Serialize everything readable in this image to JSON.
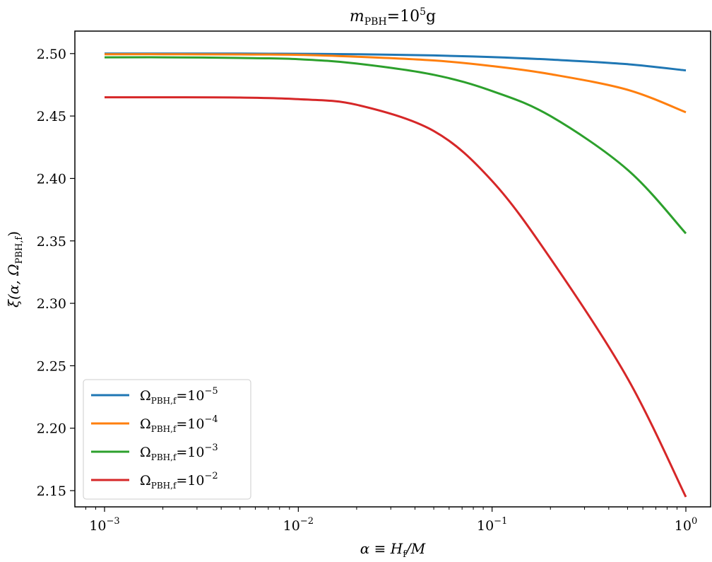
{
  "chart_data": {
    "type": "line",
    "title": "m_PBH=10^5g",
    "title_parts": {
      "base": "m",
      "sub": "PBH",
      "mid": "=10",
      "sup": "5",
      "tail": "g"
    },
    "xlabel": "α ≡ H_f/M",
    "xlabel_parts": {
      "a": "α ≡ H",
      "sub": "f",
      "b": "/M"
    },
    "ylabel": "ξ(α, Ω_PBH,f)",
    "ylabel_parts": {
      "a": "ξ(α, Ω",
      "sub": "PBH,f",
      "b": ")"
    },
    "x_scale": "log",
    "xlim": [
      0.001,
      1.0
    ],
    "ylim": [
      2.137,
      2.518
    ],
    "x_ticks": [
      {
        "value": 0.001,
        "base": "10",
        "exp": "−3"
      },
      {
        "value": 0.01,
        "base": "10",
        "exp": "−2"
      },
      {
        "value": 0.1,
        "base": "10",
        "exp": "−1"
      },
      {
        "value": 1,
        "base": "10",
        "exp": "0"
      }
    ],
    "y_ticks": [
      {
        "value": 2.15,
        "label": "2.15"
      },
      {
        "value": 2.2,
        "label": "2.20"
      },
      {
        "value": 2.25,
        "label": "2.25"
      },
      {
        "value": 2.3,
        "label": "2.30"
      },
      {
        "value": 2.35,
        "label": "2.35"
      },
      {
        "value": 2.4,
        "label": "2.40"
      },
      {
        "value": 2.45,
        "label": "2.45"
      },
      {
        "value": 2.5,
        "label": "2.50"
      }
    ],
    "grid": false,
    "legend_position": "lower-left",
    "x": [
      0.001,
      0.002,
      0.005,
      0.01,
      0.02,
      0.05,
      0.1,
      0.2,
      0.5,
      1.0
    ],
    "series": [
      {
        "name": "Ω_PBH,f=10^-5",
        "label_base": "Ω",
        "label_sub": "PBH,f",
        "label_mid": "=10",
        "label_sup": "−5",
        "color": "#1f77b4",
        "values": [
          2.5,
          2.5,
          2.5,
          2.4998,
          2.4995,
          2.4985,
          2.4972,
          2.4952,
          2.4915,
          2.4865
        ]
      },
      {
        "name": "Ω_PBH,f=10^-4",
        "label_base": "Ω",
        "label_sub": "PBH,f",
        "label_mid": "=10",
        "label_sup": "−4",
        "color": "#ff7f0e",
        "values": [
          2.4995,
          2.4995,
          2.4993,
          2.499,
          2.4975,
          2.4945,
          2.49,
          2.4835,
          2.471,
          2.453
        ]
      },
      {
        "name": "Ω_PBH,f=10^-3",
        "label_base": "Ω",
        "label_sub": "PBH,f",
        "label_mid": "=10",
        "label_sup": "−3",
        "color": "#2ca02c",
        "values": [
          2.497,
          2.497,
          2.4965,
          2.4955,
          2.492,
          2.483,
          2.47,
          2.45,
          2.407,
          2.356
        ]
      },
      {
        "name": "Ω_PBH,f=10^-2",
        "label_base": "Ω",
        "label_sub": "PBH,f",
        "label_mid": "=10",
        "label_sup": "−2",
        "color": "#d62728",
        "values": [
          2.465,
          2.465,
          2.4648,
          2.4635,
          2.459,
          2.438,
          2.398,
          2.336,
          2.24,
          2.145
        ]
      }
    ]
  }
}
